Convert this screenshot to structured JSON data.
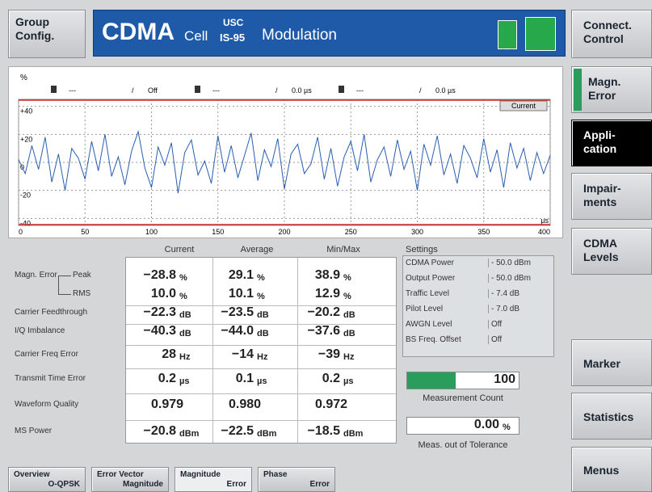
{
  "header": {
    "left_button": [
      "Group",
      "Config."
    ],
    "title": "CDMA",
    "cell": "Cell",
    "standard_top": "USC",
    "standard_bottom": "IS-95",
    "mode": "Modulation"
  },
  "side_menu": [
    [
      "Connect.",
      "Control"
    ],
    [
      "Magn.",
      "Error"
    ],
    [
      "Appli-",
      "cation"
    ],
    [
      "Impair-",
      "ments"
    ],
    [
      "CDMA",
      "Levels"
    ],
    [
      "Marker"
    ],
    [
      "Statistics"
    ],
    [
      "Menus"
    ]
  ],
  "chart_data": {
    "type": "line",
    "y_unit": "%",
    "x_unit": "µs",
    "badge": "Current",
    "separator": "/",
    "marker_row": [
      {
        "value": "---",
        "delta": "Off"
      },
      {
        "value": "---",
        "delta": "0.0 µs"
      },
      {
        "value": "---",
        "delta": "0.0 µs"
      }
    ],
    "xlim": [
      0,
      400
    ],
    "ylim": [
      -45,
      45
    ],
    "xticks": [
      0,
      50,
      100,
      150,
      200,
      250,
      300,
      350,
      400
    ],
    "yticks": [
      {
        "value": 40,
        "label": "+40"
      },
      {
        "value": 20,
        "label": "+20"
      },
      0,
      -20,
      -40
    ],
    "grid": true,
    "series": [
      {
        "color": "#2a5db0",
        "x": [
          0,
          5,
          10,
          15,
          20,
          25,
          30,
          35,
          40,
          45,
          50,
          55,
          60,
          65,
          70,
          75,
          80,
          85,
          90,
          95,
          100,
          105,
          110,
          115,
          120,
          125,
          130,
          135,
          140,
          145,
          150,
          155,
          160,
          165,
          170,
          175,
          180,
          185,
          190,
          195,
          200,
          205,
          210,
          215,
          220,
          225,
          230,
          235,
          240,
          245,
          250,
          255,
          260,
          265,
          270,
          275,
          280,
          285,
          290,
          295,
          300,
          305,
          310,
          315,
          320,
          325,
          330,
          335,
          340,
          345,
          350,
          355,
          360,
          365,
          370,
          375,
          380,
          385,
          390,
          395,
          400
        ],
        "values": [
          2,
          -8,
          12,
          -5,
          18,
          -14,
          6,
          -20,
          10,
          3,
          -12,
          15,
          -6,
          20,
          -10,
          4,
          -16,
          8,
          22,
          -4,
          -18,
          11,
          -2,
          14,
          -22,
          7,
          16,
          -9,
          1,
          -15,
          19,
          -7,
          12,
          -11,
          5,
          21,
          -13,
          9,
          -3,
          17,
          -19,
          6,
          13,
          -8,
          -1,
          18,
          -12,
          10,
          -17,
          4,
          15,
          -6,
          20,
          -14,
          2,
          11,
          -10,
          16,
          -5,
          8,
          -20,
          13,
          -2,
          19,
          -9,
          6,
          -15,
          12,
          3,
          -11,
          17,
          -7,
          9,
          -18,
          14,
          -4,
          10,
          -13,
          7,
          -8,
          5
        ]
      }
    ]
  },
  "results": {
    "columns": [
      "Current",
      "Average",
      "Min/Max"
    ],
    "group_label": "Magn. Error",
    "rows": [
      {
        "label": "Peak",
        "cells": [
          {
            "v": "−28.8",
            "u": "%"
          },
          {
            "v": "29.1",
            "u": "%"
          },
          {
            "v": "38.9",
            "u": "%"
          }
        ]
      },
      {
        "label": "RMS",
        "cells": [
          {
            "v": "10.0",
            "u": "%"
          },
          {
            "v": "10.1",
            "u": "%"
          },
          {
            "v": "12.9",
            "u": "%"
          }
        ]
      },
      {
        "label": "Carrier Feedthrough",
        "cells": [
          {
            "v": "−22.3",
            "u": "dB"
          },
          {
            "v": "−23.5",
            "u": "dB"
          },
          {
            "v": "−20.2",
            "u": "dB"
          }
        ]
      },
      {
        "label": "I/Q Imbalance",
        "cells": [
          {
            "v": "−40.3",
            "u": "dB"
          },
          {
            "v": "−44.0",
            "u": "dB"
          },
          {
            "v": "−37.6",
            "u": "dB"
          }
        ]
      },
      {
        "label": "Carrier Freq Error",
        "cells": [
          {
            "v": "28",
            "u": "Hz"
          },
          {
            "v": "−14",
            "u": "Hz"
          },
          {
            "v": "−39",
            "u": "Hz"
          }
        ]
      },
      {
        "label": "Transmit Time Error",
        "cells": [
          {
            "v": "0.2",
            "u": "µs"
          },
          {
            "v": "0.1",
            "u": "µs"
          },
          {
            "v": "0.2",
            "u": "µs"
          }
        ]
      },
      {
        "label": "Waveform Quality",
        "cells": [
          {
            "v": "0.979"
          },
          {
            "v": "0.980"
          },
          {
            "v": "0.972"
          }
        ]
      },
      {
        "label": "MS Power",
        "cells": [
          {
            "v": "−20.8",
            "u": "dBm"
          },
          {
            "v": "−22.5",
            "u": "dBm"
          },
          {
            "v": "−18.5",
            "u": "dBm"
          }
        ]
      }
    ]
  },
  "settings": {
    "title": "Settings",
    "rows": [
      [
        "CDMA Power",
        "- 50.0 dBm"
      ],
      [
        "Output Power",
        "- 50.0 dBm"
      ],
      [
        "Traffic Level",
        "- 7.4 dB"
      ],
      [
        "Pilot Level",
        "- 7.0 dB"
      ],
      [
        "AWGN Level",
        "Off"
      ],
      [
        "BS Freq. Offset",
        "Off"
      ]
    ]
  },
  "measurement_count": {
    "value": "100",
    "label": "Measurement Count"
  },
  "tolerance": {
    "value": "0.00",
    "unit": "%",
    "label": "Meas. out of Tolerance"
  },
  "tabs": [
    [
      "Overview",
      "O-QPSK"
    ],
    [
      "Error Vector",
      "Magnitude"
    ],
    [
      "Magnitude",
      "Error"
    ],
    [
      "Phase",
      "Error"
    ]
  ]
}
